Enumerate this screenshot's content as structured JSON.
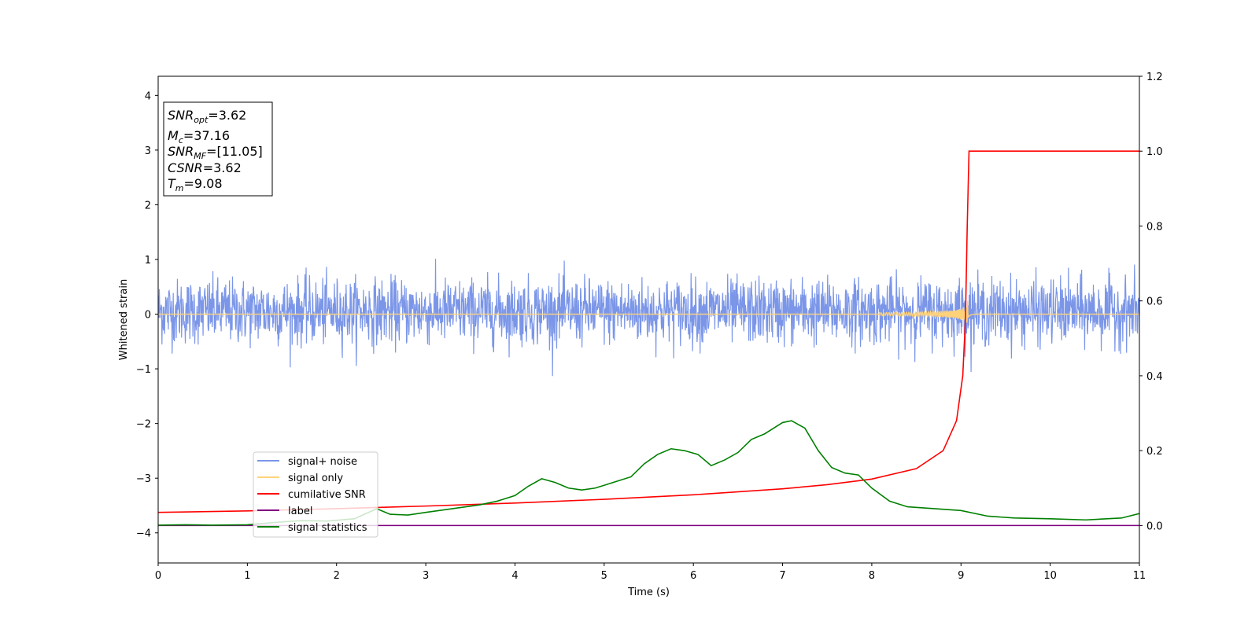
{
  "chart_data": {
    "type": "line",
    "xlabel": "Time (s)",
    "ylabel": "Whitened strain",
    "xlim": [
      0,
      11
    ],
    "ylim_left": [
      -4.55,
      4.35
    ],
    "ylim_right": [
      -0.1,
      1.2
    ],
    "x_ticks": [
      "0",
      "1",
      "2",
      "3",
      "4",
      "5",
      "6",
      "7",
      "8",
      "9",
      "10",
      "11"
    ],
    "y_ticks_left": [
      "−4",
      "−3",
      "−2",
      "−1",
      "0",
      "1",
      "2",
      "3",
      "4"
    ],
    "y_ticks_right": [
      "0.0",
      "0.2",
      "0.4",
      "0.6",
      "0.8",
      "1.0",
      "1.2"
    ],
    "grid": false,
    "legend_position": "lower-left",
    "annotation": {
      "lines": [
        {
          "base": "SNR",
          "sub": "opt",
          "rest": "=3.62"
        },
        {
          "base": "M",
          "sub": "c",
          "rest": "=37.16"
        },
        {
          "base": "SNR",
          "sub": "MF",
          "rest": "=[11.05]"
        },
        {
          "base": "CSNR",
          "sub": "",
          "rest": "=3.62"
        },
        {
          "base": "T",
          "sub": "m",
          "rest": "=9.08"
        }
      ]
    },
    "series": [
      {
        "name": "signal+ noise",
        "color": "#7b96e8",
        "axis": "left",
        "style": "noise",
        "noise_band": {
          "low": -0.65,
          "high": 0.75,
          "max_abs": 1.3
        }
      },
      {
        "name": "signal only",
        "color": "#ffd27a",
        "axis": "left",
        "style": "chirp",
        "merger_time": 9.08,
        "points": [
          [
            0,
            0
          ],
          [
            11,
            0
          ]
        ]
      },
      {
        "name": "cumilative SNR",
        "color": "#ff0000",
        "axis": "right",
        "points": [
          [
            0,
            0.035
          ],
          [
            1,
            0.039
          ],
          [
            2,
            0.045
          ],
          [
            3,
            0.052
          ],
          [
            4,
            0.06
          ],
          [
            5,
            0.07
          ],
          [
            6,
            0.082
          ],
          [
            7,
            0.098
          ],
          [
            7.5,
            0.109
          ],
          [
            8,
            0.124
          ],
          [
            8.5,
            0.152
          ],
          [
            8.8,
            0.2
          ],
          [
            8.95,
            0.28
          ],
          [
            9.02,
            0.4
          ],
          [
            9.05,
            0.55
          ],
          [
            9.07,
            0.8
          ],
          [
            9.09,
            1.0
          ],
          [
            11,
            1.0
          ]
        ]
      },
      {
        "name": "label",
        "color": "#800080",
        "axis": "right",
        "points": [
          [
            0,
            0
          ],
          [
            11,
            0
          ]
        ]
      },
      {
        "name": "signal statistics",
        "color": "#008000",
        "axis": "right",
        "points": [
          [
            0,
            0.001
          ],
          [
            0.3,
            0.002
          ],
          [
            0.6,
            0.001
          ],
          [
            1.0,
            0.002
          ],
          [
            1.3,
            0.008
          ],
          [
            1.6,
            0.013
          ],
          [
            1.9,
            0.012
          ],
          [
            2.2,
            0.018
          ],
          [
            2.45,
            0.045
          ],
          [
            2.6,
            0.03
          ],
          [
            2.8,
            0.028
          ],
          [
            3.0,
            0.035
          ],
          [
            3.3,
            0.045
          ],
          [
            3.6,
            0.055
          ],
          [
            3.8,
            0.065
          ],
          [
            4.0,
            0.08
          ],
          [
            4.15,
            0.105
          ],
          [
            4.3,
            0.125
          ],
          [
            4.45,
            0.115
          ],
          [
            4.6,
            0.1
          ],
          [
            4.75,
            0.095
          ],
          [
            4.9,
            0.1
          ],
          [
            5.1,
            0.115
          ],
          [
            5.3,
            0.13
          ],
          [
            5.45,
            0.165
          ],
          [
            5.6,
            0.19
          ],
          [
            5.75,
            0.205
          ],
          [
            5.9,
            0.2
          ],
          [
            6.05,
            0.19
          ],
          [
            6.2,
            0.16
          ],
          [
            6.35,
            0.175
          ],
          [
            6.5,
            0.195
          ],
          [
            6.65,
            0.23
          ],
          [
            6.8,
            0.245
          ],
          [
            6.9,
            0.26
          ],
          [
            7.0,
            0.275
          ],
          [
            7.1,
            0.28
          ],
          [
            7.25,
            0.26
          ],
          [
            7.4,
            0.2
          ],
          [
            7.55,
            0.155
          ],
          [
            7.7,
            0.14
          ],
          [
            7.85,
            0.135
          ],
          [
            8.0,
            0.1
          ],
          [
            8.2,
            0.065
          ],
          [
            8.4,
            0.05
          ],
          [
            8.7,
            0.045
          ],
          [
            9.0,
            0.04
          ],
          [
            9.3,
            0.025
          ],
          [
            9.6,
            0.02
          ],
          [
            10.0,
            0.018
          ],
          [
            10.4,
            0.015
          ],
          [
            10.8,
            0.02
          ],
          [
            11.0,
            0.032
          ]
        ]
      }
    ]
  }
}
